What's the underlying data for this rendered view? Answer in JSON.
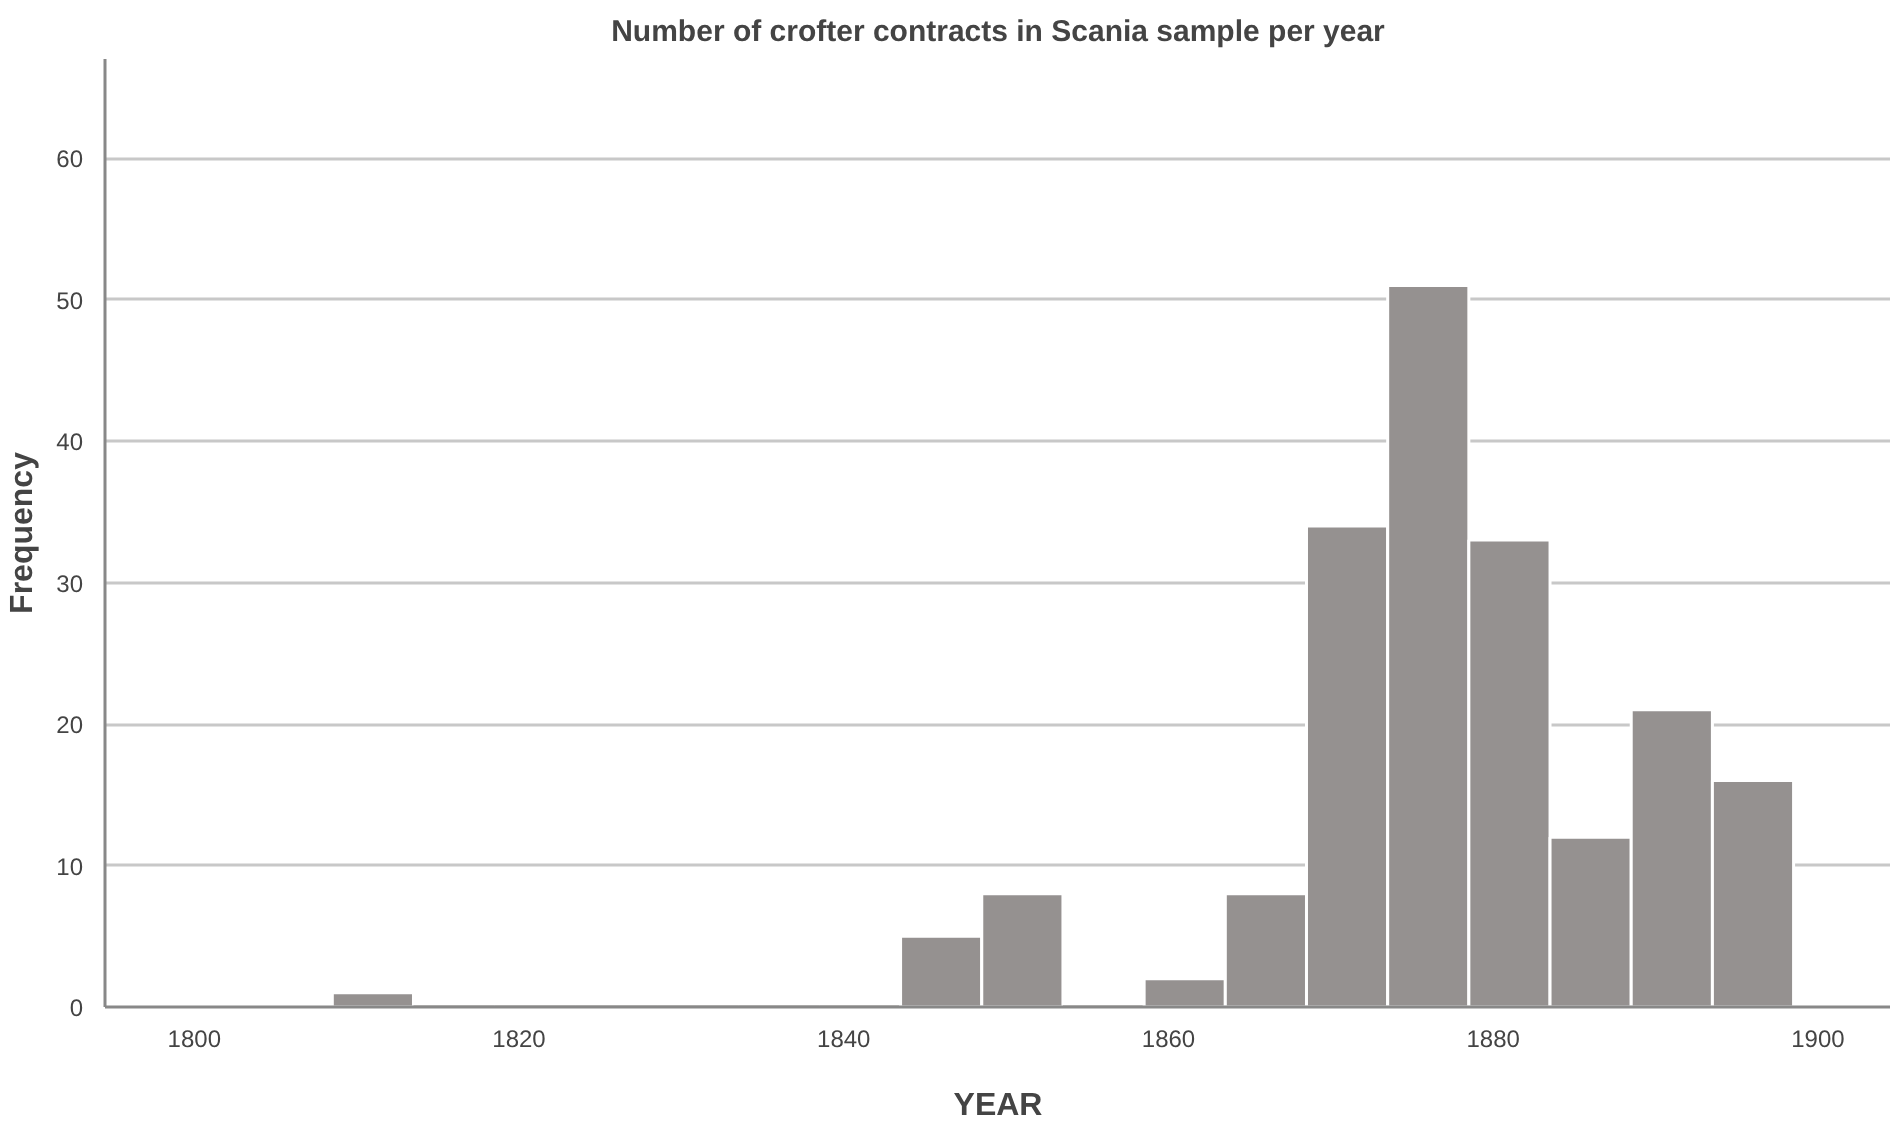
{
  "chart_data": {
    "type": "histogram",
    "title": "Number of crofter contracts in Scania sample per year",
    "xlabel": "YEAR",
    "ylabel": "Frequency",
    "bins": [
      1808.5,
      1813.5,
      1818.5,
      1823.5,
      1828.5,
      1833.5,
      1838.5,
      1843.5,
      1848.5,
      1853.5,
      1858.5,
      1863.5,
      1868.5,
      1873.5,
      1878.5,
      1883.5,
      1888.5,
      1893.5,
      1898.5
    ],
    "values": [
      1,
      0,
      0,
      0,
      0,
      0,
      0,
      5,
      8,
      0,
      2,
      8,
      34,
      51,
      33,
      12,
      21,
      16
    ],
    "color": "#959190",
    "xlim": [
      1794.5,
      1904.5
    ],
    "xticks": [
      1800,
      1820,
      1840,
      1860,
      1880,
      1900
    ],
    "ylim": [
      0,
      67
    ],
    "yticks": [
      0,
      10,
      20,
      30,
      40,
      50,
      60
    ],
    "grid": "y"
  }
}
